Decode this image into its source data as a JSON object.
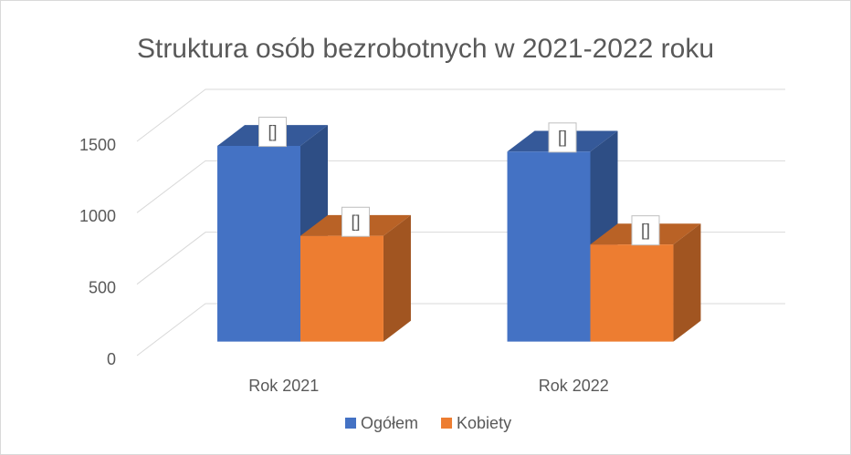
{
  "chart_data": {
    "type": "bar3d",
    "title": "Struktura osób bezrobotnych w  2021-2022 roku",
    "categories": [
      "Rok 2021",
      "Rok 2022"
    ],
    "series": [
      {
        "name": "Ogółem",
        "color": "#4472c4",
        "values": [
          1370,
          1330
        ],
        "value_labels": [
          "[]",
          "[]"
        ]
      },
      {
        "name": "Kobiety",
        "color": "#ed7d31",
        "values": [
          740,
          680
        ],
        "value_labels": [
          "[]",
          "[]"
        ]
      }
    ],
    "ylim": [
      0,
      1500
    ],
    "yticks": [
      0,
      500,
      1000,
      1500
    ],
    "grid": true,
    "legend": "bottom"
  }
}
